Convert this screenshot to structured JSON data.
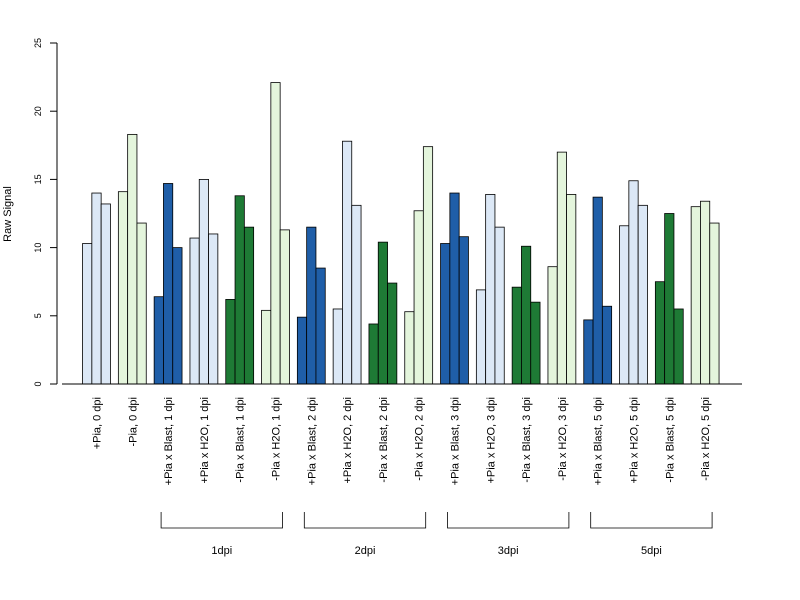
{
  "chart_data": {
    "type": "bar",
    "title": "",
    "xlabel": "",
    "ylabel": "Raw Signal",
    "ylim": [
      0,
      25
    ],
    "yticks": [
      0,
      5,
      10,
      15,
      20,
      25
    ],
    "grid": false,
    "categories": [
      "+Pia, 0 dpi",
      "-Pia, 0 dpi",
      "+Pia x Blast, 1 dpi",
      "+Pia x H2O, 1 dpi",
      "-Pia x Blast, 1 dpi",
      "-Pia x H2O, 1 dpi",
      "+Pia x Blast, 2 dpi",
      "+Pia x H2O, 2 dpi",
      "-Pia x Blast, 2 dpi",
      "-Pia x H2O, 2 dpi",
      "+Pia x Blast, 3 dpi",
      "+Pia x H2O, 3 dpi",
      "-Pia x Blast, 3 dpi",
      "-Pia x H2O, 3 dpi",
      "+Pia x Blast, 5 dpi",
      "+Pia x H2O, 5 dpi",
      "-Pia x Blast, 5 dpi",
      "-Pia x H2O, 5 dpi"
    ],
    "values": [
      [
        10.3,
        14.0,
        13.2
      ],
      [
        14.1,
        18.3,
        11.8
      ],
      [
        6.4,
        14.7,
        10.0
      ],
      [
        10.7,
        15.0,
        11.0
      ],
      [
        6.2,
        13.8,
        11.5
      ],
      [
        5.4,
        22.1,
        11.3
      ],
      [
        4.9,
        11.5,
        8.5
      ],
      [
        5.5,
        17.8,
        13.1
      ],
      [
        4.4,
        10.4,
        7.4
      ],
      [
        5.3,
        12.7,
        17.4
      ],
      [
        10.3,
        14.0,
        10.8
      ],
      [
        6.9,
        13.9,
        11.5
      ],
      [
        7.1,
        10.1,
        6.0
      ],
      [
        8.6,
        17.0,
        13.9
      ],
      [
        4.7,
        13.7,
        5.7
      ],
      [
        11.6,
        14.9,
        13.1
      ],
      [
        7.5,
        12.5,
        5.5
      ],
      [
        13.0,
        13.4,
        11.8
      ]
    ],
    "bar_colors": [
      "#dce8f6",
      "#e4f5dc",
      "#1f5ea8",
      "#dce8f6",
      "#1e7a35",
      "#e4f5dc",
      "#1f5ea8",
      "#dce8f6",
      "#1e7a35",
      "#e4f5dc",
      "#1f5ea8",
      "#dce8f6",
      "#1e7a35",
      "#e4f5dc",
      "#1f5ea8",
      "#dce8f6",
      "#1e7a35",
      "#e4f5dc"
    ],
    "groups": [
      {
        "label": "1dpi",
        "from": 2,
        "to": 5
      },
      {
        "label": "2dpi",
        "from": 6,
        "to": 9
      },
      {
        "label": "3dpi",
        "from": 10,
        "to": 13
      },
      {
        "label": "5dpi",
        "from": 14,
        "to": 17
      }
    ]
  }
}
